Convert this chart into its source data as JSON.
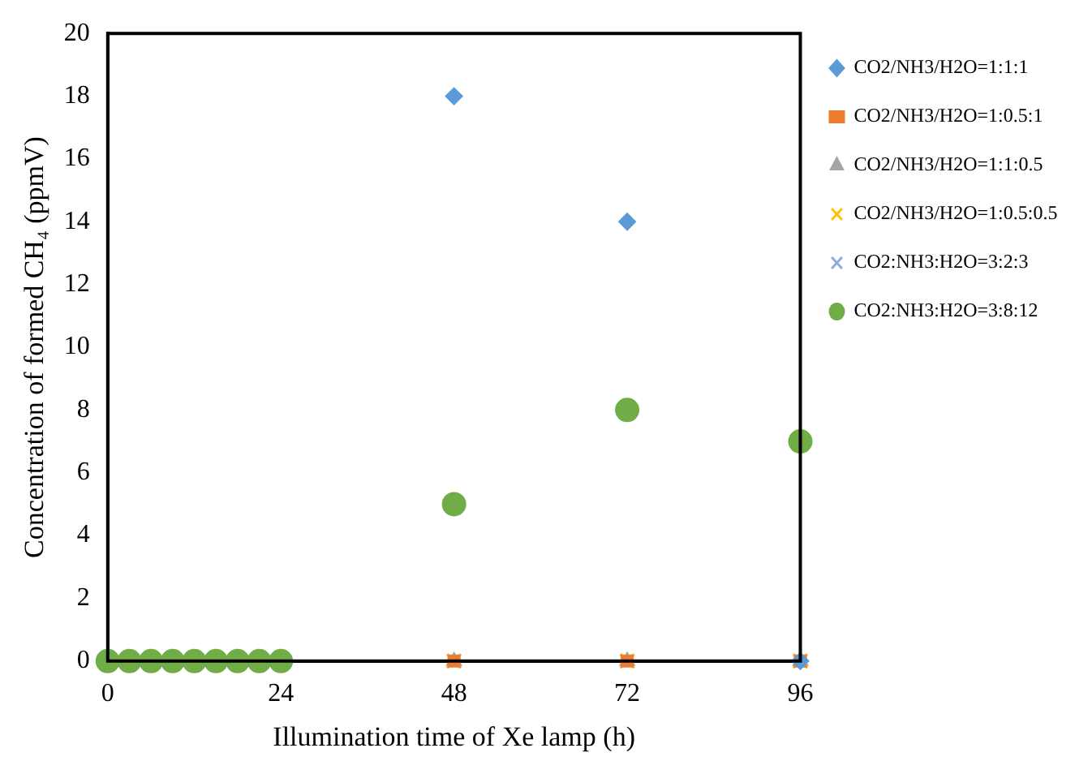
{
  "chart_data": {
    "type": "scatter",
    "xlabel": "Illumination time of Xe lamp (h)",
    "ylabel": "Concentration of formed CH₄ (ppmV)",
    "xlim": [
      0,
      96
    ],
    "xticks": [
      0,
      24,
      48,
      72,
      96
    ],
    "ylim": [
      0,
      20
    ],
    "yticks": [
      0,
      2,
      4,
      6,
      8,
      10,
      12,
      14,
      16,
      18,
      20
    ],
    "grid": false,
    "legend": "right",
    "series": [
      {
        "name": "CO2/NH3/H2O=1:1:1",
        "color": "#5b9bd5",
        "marker": "diamond",
        "x": [
          48,
          72,
          96
        ],
        "values": [
          18,
          14,
          0
        ]
      },
      {
        "name": "CO2/NH3/H2O=1:0.5:1",
        "color": "#ed7d31",
        "marker": "square",
        "x": [
          48,
          72,
          96
        ],
        "values": [
          0,
          0,
          0
        ]
      },
      {
        "name": "CO2/NH3/H2O=1:1:0.5",
        "color": "#a5a5a5",
        "marker": "triangle",
        "x": [
          48,
          72,
          96
        ],
        "values": [
          0,
          0,
          0
        ]
      },
      {
        "name": "CO2/NH3/H2O=1:0.5:0.5",
        "color": "#ffc000",
        "marker": "cross",
        "x": [
          48,
          72,
          96
        ],
        "values": [
          0,
          0,
          0
        ]
      },
      {
        "name": "CO2:NH3:H2O=3:2:3",
        "color": "#8faadc",
        "marker": "cross",
        "x": [
          48,
          72,
          96
        ],
        "values": [
          0,
          0,
          0
        ]
      },
      {
        "name": "CO2:NH3:H2O=3:8:12",
        "color": "#70ad47",
        "marker": "circle",
        "x": [
          0,
          3,
          6,
          9,
          12,
          15,
          18,
          21,
          24,
          48,
          72,
          96
        ],
        "values": [
          0,
          0,
          0,
          0,
          0,
          0,
          0,
          0,
          0,
          5,
          8,
          7
        ]
      }
    ]
  }
}
